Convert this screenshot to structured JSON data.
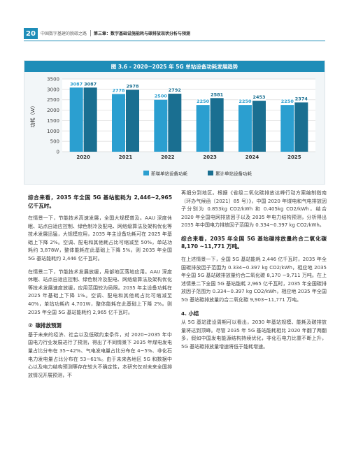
{
  "header": {
    "page_number": "20",
    "book_title": "中国数字基建的脱碳之路",
    "chapter_title": "第三章：数字基础设施能耗与碳排放现状分析与预测"
  },
  "figure": {
    "title": "图 3.6 - 2020~2025 年 5G 单站设备功耗发展趋势"
  },
  "chart_data": {
    "type": "bar",
    "categories": [
      "2020",
      "2021",
      "2022",
      "2023",
      "2024",
      "2025"
    ],
    "ylabel": "功耗（W）",
    "ylim": [
      0,
      3500
    ],
    "yticks": [
      0,
      500,
      1000,
      1500,
      2000,
      2500,
      3000,
      3500
    ],
    "grid": true,
    "legend_position": "bottom",
    "series": [
      {
        "name": "新增单站设备功耗",
        "color": "#2b9fd0",
        "values": [
          3087,
          2778,
          2500,
          2250,
          2250,
          2250
        ]
      },
      {
        "name": "累计单站设备功耗",
        "color": "#1a6f91",
        "values": [
          3087,
          2978,
          2792,
          2581,
          2453,
          2374
        ]
      }
    ]
  },
  "left_column": {
    "heading1": "综合来看，2035 年全国 5G 基站能耗为 2,446~2,965 亿千瓦时。",
    "para1": "在情景一下，节能技术高速发展，全国大规模普及。AAU 深度休眠、站点自适应控制、绿色制冷及配电、网络级算法及架构优化等技术发展迅猛，大规模应用，2035 年主设备功耗可在 2025 年基础上下降 2%。空调、配电和其他耗占比可缩减至 50%，单站功耗约 3,878W，整体能耗在此基础上下降 5%。则 2035 年全国 5G 基站能耗约 2,446 亿千瓦时。",
    "para2": "在情景二下，节能技术发展放缓，局部地区落地应用。AAU 深度休眠、站点自适应控制、绿色制冷及配电、网络级算法及架构优化等技术发展速度放缓，应用范围较为局限。2035 年主设备功耗在 2025 年基础上下降 1%。空调、配电和其他耗占比可缩减至 40%，单站功耗约 4,701W，整体能耗在此基础上下降 2%。则 2035 年全国 5G 基站能耗约 2,965 亿千瓦时。",
    "section_num": "②",
    "section_title": "碳排放预测",
    "para3": "基于未来的经济、社会以及低碳约束条件，对 2020~2035 年中国电力行业发展进行了预测，得出了不同情景下 2035 年煤电发电量占比分布在 35~42%、气电发电量占比分布在 4~5%、非化石电力发电量占比分布在 53~61%。由于未来各地区 5G 和数据中心以及电力结构预测等存在较大不确定性，本研究仅对未来全国排放情况开展预测，不"
  },
  "right_column": {
    "para1": "再细分到地区。根据《省级二氧化碳排放达峰行动方案编制指南（环办气候函〔2021〕85 号）》，中国 2020 年煤电和气电排放因子分别为 0.853kg CO2/kWh 和 0.405kg CO2/kWh，结合 2020 年全国电网排放因子以及 2035 年电力结构预测，分析得出 2035 年中国电力排放因子范围为 0.334~0.397 kg CO2/kWh。",
    "heading2": "综合来看，2035 年全国 5G 基站碳排放量约合二氧化碳 8,170 ~11,771 万吨。",
    "para2": "在上述情景一下，全国 5G 基站能耗 2,446 亿千瓦时，2035 年全国碳排放因子范围为 0.334~0.397 kg CO2/kWh，相应地 2035 年全国 5G 基站碳排放量约合二氧化碳 8,170 ~9,711 万吨。在上述情景二下全国 5G 基站能耗 2,965 亿千瓦时，2035 年全国碳排放因子范围为 0.334~0.397 kg CO2/kWh，相应地 2035 年全国 5G 基站碳排放量约合二氧化碳 9,903~11,771 万吨。",
    "section4_title": "4. 小结",
    "para3": "从 5G 基站建设周期可以看出，2030 年基站规模、能耗及碳排放量将达到顶峰。尽管 2035 年 5G 基站能耗相比 2020 年翻了两翻多，假如中国发电能源结构持续优化，非化石电力比重不断上升，5G 基站碳排放量增速将低于能耗增速。"
  }
}
